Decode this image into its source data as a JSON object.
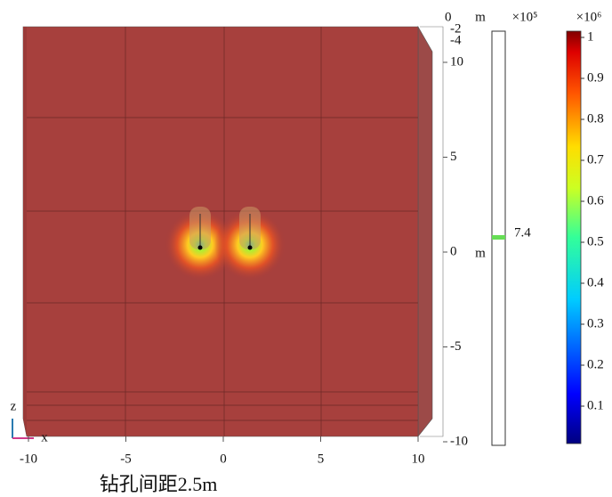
{
  "caption": "钻孔间距2.5m",
  "x_axis": {
    "label": "x",
    "ticks": [
      -10,
      -5,
      0,
      5,
      10
    ]
  },
  "z_axis": {
    "label": "z",
    "unit": "m",
    "ticks": [
      10,
      5,
      0,
      -5,
      -10
    ]
  },
  "y_axis": {
    "unit": "m",
    "ticks": [
      0,
      -2,
      -4
    ]
  },
  "range_bar": {
    "multiplier": "×10⁵",
    "marker": 7.4,
    "color": "#66dd55"
  },
  "colorbar": {
    "multiplier": "×10⁶",
    "ticks": [
      0.1,
      0.2,
      0.3,
      0.4,
      0.5,
      0.6,
      0.7,
      0.8,
      0.9,
      1
    ]
  }
}
